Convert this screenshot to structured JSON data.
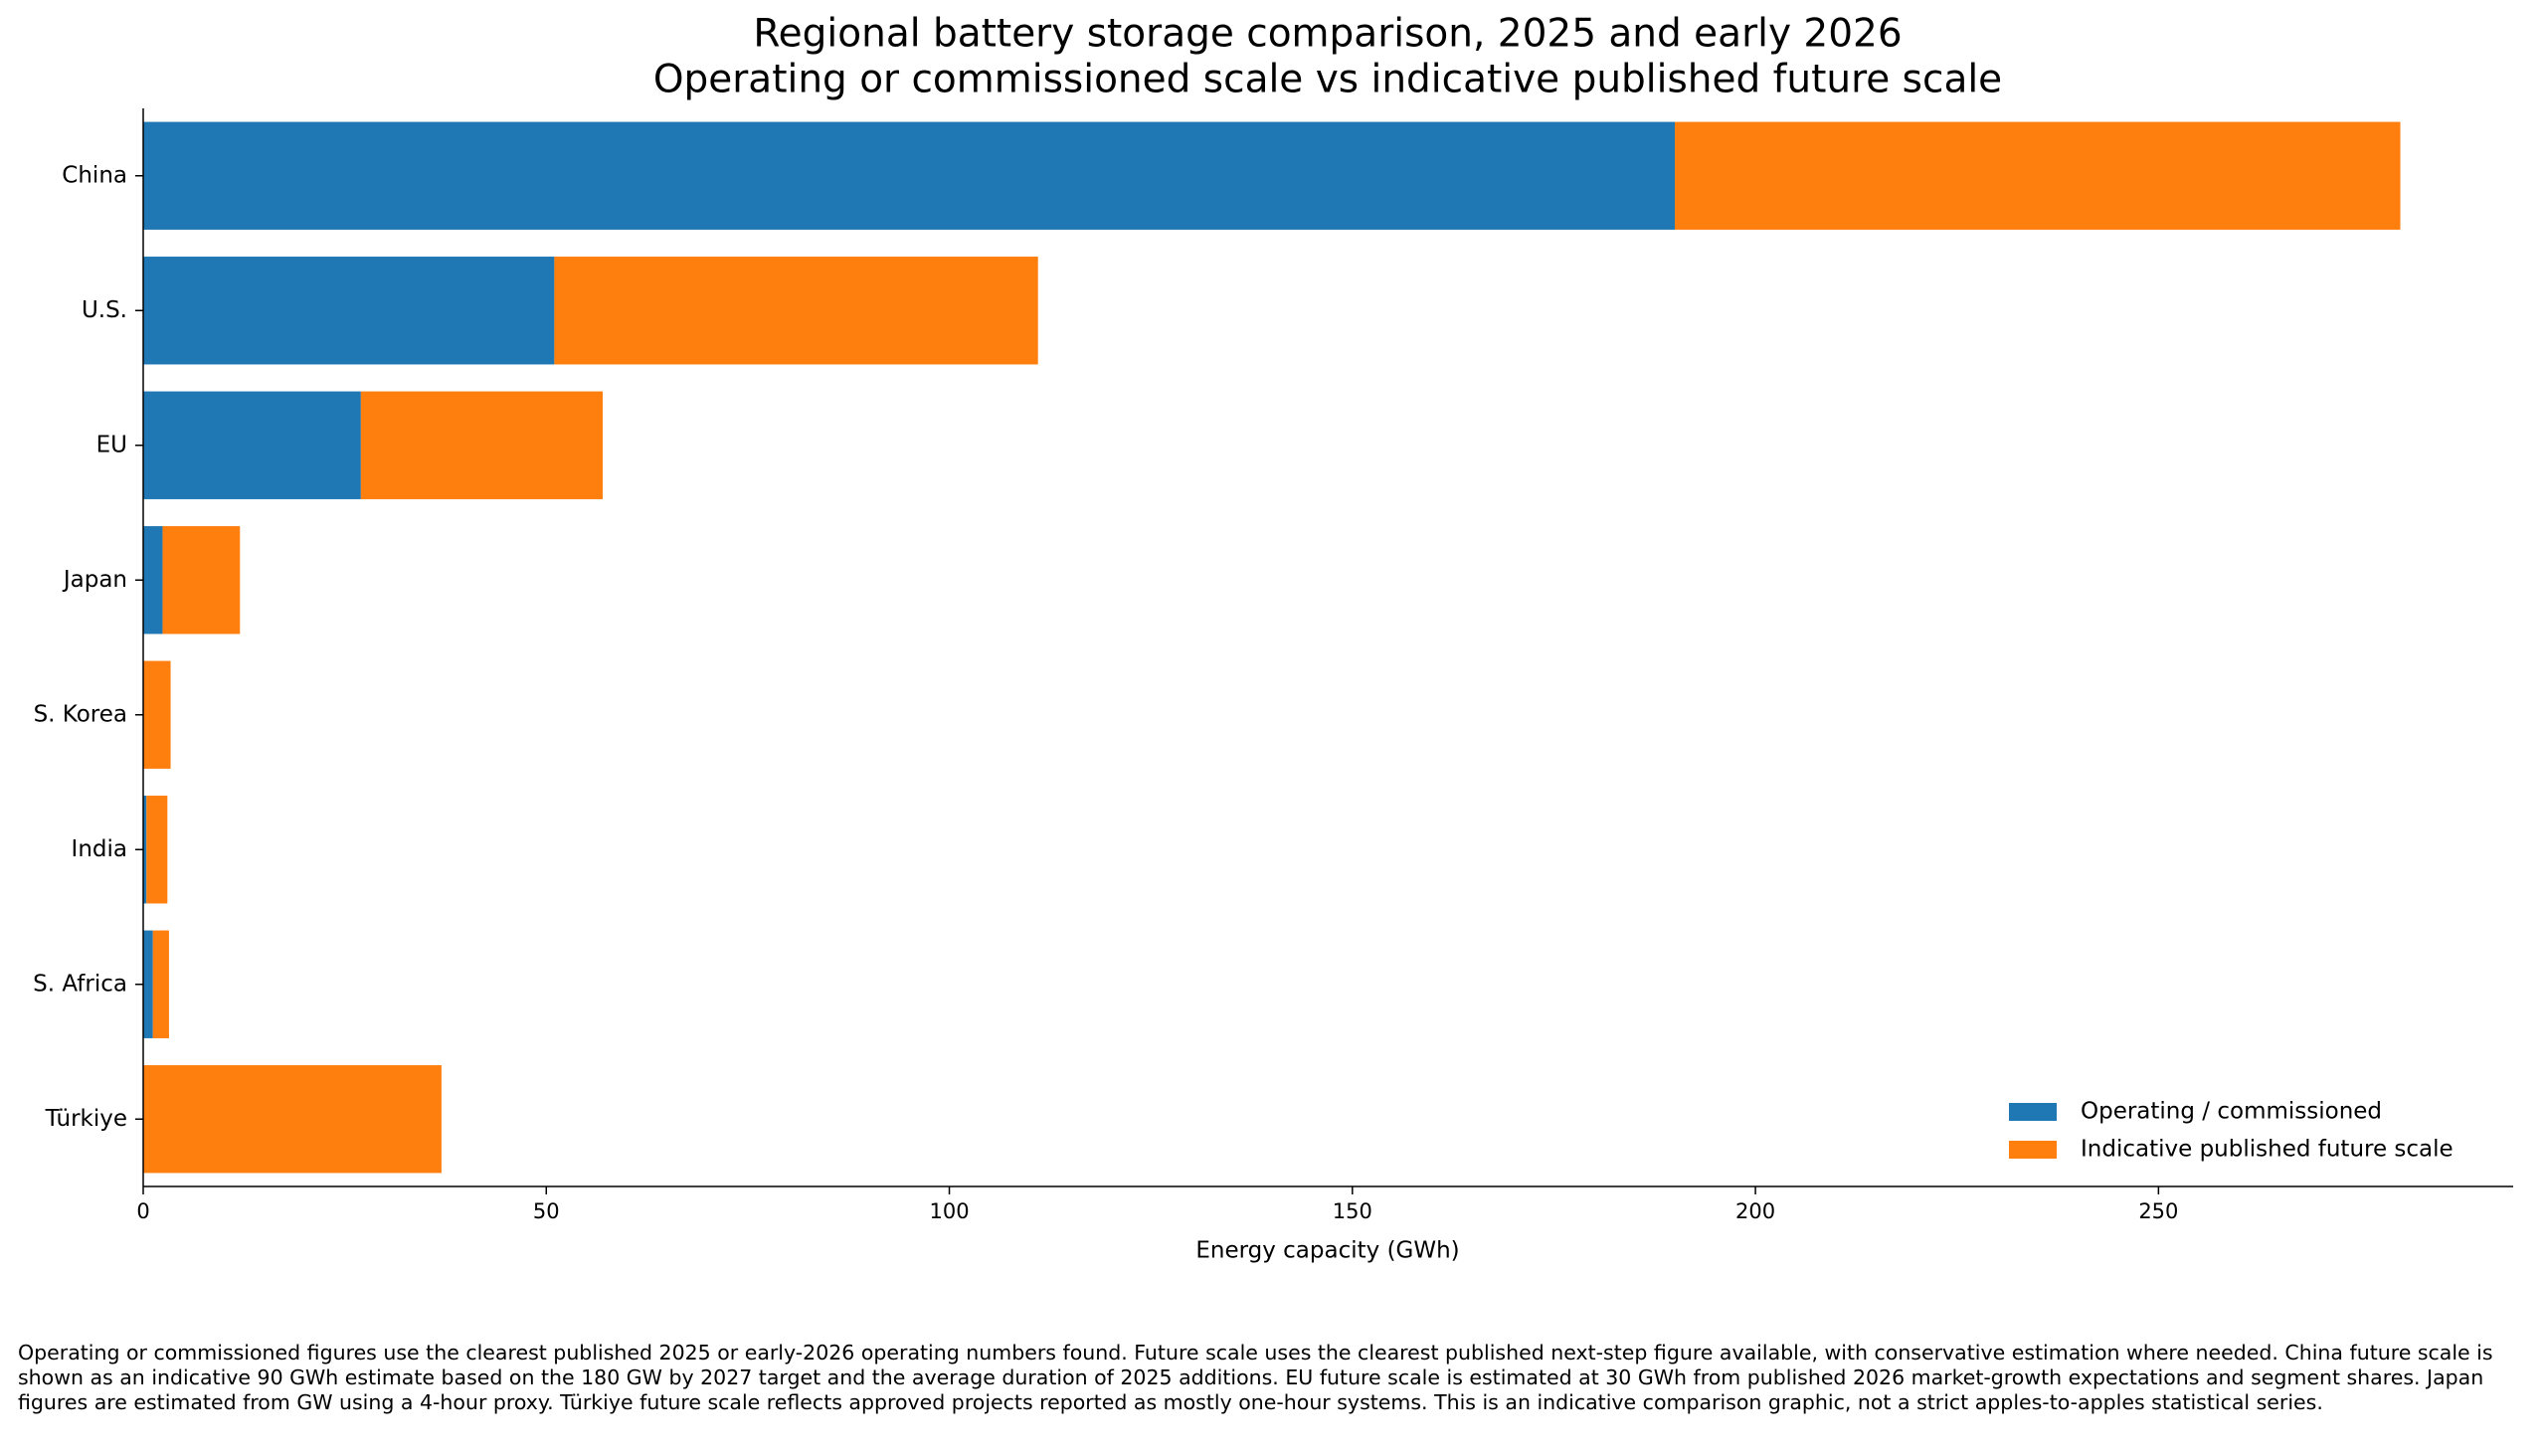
{
  "chart_data": {
    "type": "stacked-barh",
    "title": "Regional battery storage comparison, 2025 and early 2026",
    "subtitle": "Operating or commissioned scale vs indicative published future scale",
    "x_label": "Energy capacity (GWh)",
    "categories": [
      "China",
      "U.S.",
      "EU",
      "Japan",
      "S. Korea",
      "India",
      "S. Africa",
      "Türkiye"
    ],
    "series": [
      {
        "name": "Operating / commissioned",
        "color": "#1f77b4",
        "values": [
          190,
          51,
          27,
          2.4,
          0,
          0.4,
          1.2,
          0
        ]
      },
      {
        "name": "Indicative published future scale",
        "color": "#ff7f0e",
        "values": [
          90,
          60,
          30,
          9.6,
          3.4,
          2.6,
          2.0,
          37
        ]
      }
    ],
    "xlim": [
      0,
      294
    ],
    "xticks": [
      0,
      50,
      100,
      150,
      200,
      250
    ],
    "legend": "lower right",
    "footnote": "Operating or commissioned figures use the clearest published 2025 or early-2026 operating numbers found. Future scale uses the clearest published next-step figure available, with conservative estimation where needed. China future scale is shown as an indicative 90 GWh estimate based on the 180 GW by 2027 target and the average duration of 2025 additions. EU future scale is estimated at 30 GWh from published 2026 market-growth expectations and segment shares. Japan figures are estimated from GW using a 4-hour proxy. Türkiye future scale reflects approved projects reported as mostly one-hour systems. This is an indicative comparison graphic, not a strict apples-to-apples statistical series."
  }
}
